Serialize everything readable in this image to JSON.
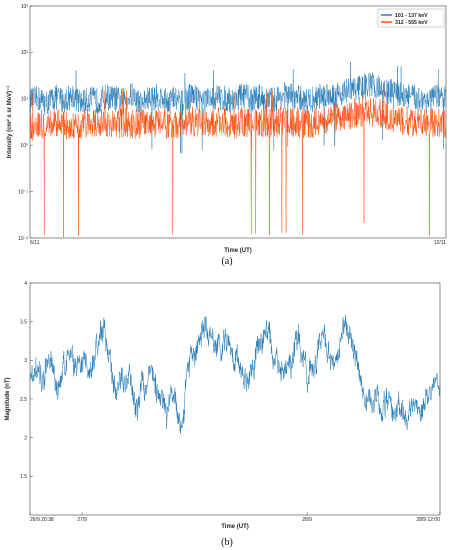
{
  "chart_data": [
    {
      "type": "line",
      "panel_label": "(a)",
      "xlabel": "Time (UT)",
      "ylabel": "Intensity (cm² s sr MeV)⁻¹",
      "yscale": "log",
      "ylim": [
        0.01,
        1000
      ],
      "ytick_labels": [
        "10⁻²",
        "10⁻¹",
        "10⁰",
        "10¹",
        "10²",
        "10³"
      ],
      "ytick_values": [
        0.01,
        0.1,
        1,
        10,
        100,
        1000
      ],
      "xtick_labels": [
        "6/11",
        "12/11"
      ],
      "legend_position": "top-right",
      "series": [
        {
          "name": "101 - 137 keV",
          "color": "#1f77b4",
          "values": [
            9,
            10,
            8,
            11,
            9,
            12,
            8,
            10,
            9,
            11,
            10,
            9,
            12,
            8,
            10,
            11,
            9,
            10,
            8,
            12,
            10,
            9,
            11,
            10,
            9,
            12,
            10,
            11,
            9,
            10,
            12,
            11,
            10,
            9,
            11,
            13,
            12,
            14,
            16,
            18,
            20,
            18,
            15,
            13,
            12,
            11,
            10,
            9,
            11,
            10
          ]
        },
        {
          "name": "312 - 555 keV",
          "color": "#ff4500",
          "values": [
            2.5,
            3,
            2.8,
            3.2,
            2.6,
            3,
            2.7,
            3.1,
            2.9,
            3,
            2.6,
            3.2,
            2.8,
            3,
            2.7,
            3.1,
            2.9,
            3,
            2.8,
            3.2,
            3,
            2.9,
            3.1,
            3,
            2.8,
            3.3,
            3,
            3.2,
            2.9,
            3,
            3.3,
            3.1,
            3,
            2.9,
            3.2,
            3.6,
            3.9,
            4.3,
            4.8,
            5.2,
            5.5,
            5,
            4.3,
            3.8,
            3.4,
            3.1,
            3,
            2.8,
            3,
            2.9
          ]
        }
      ]
    },
    {
      "type": "line",
      "panel_label": "(b)",
      "xlabel": "Time (UT)",
      "ylabel": "Magnitude (nT)",
      "ylim": [
        1,
        4
      ],
      "ytick_labels": [
        "1.5",
        "2",
        "2.5",
        "3",
        "3.5",
        "4"
      ],
      "ytick_values": [
        1.5,
        2,
        2.5,
        3,
        3.5,
        4
      ],
      "xtick_labels": [
        "26/9 20:38",
        "27/9",
        "28/9",
        "28/9 12:00"
      ],
      "xtick_positions": [
        0,
        0.127,
        0.676,
        1
      ],
      "series": [
        {
          "name": "",
          "color": "#1f77b4",
          "values": [
            2.85,
            2.8,
            2.9,
            2.7,
            2.95,
            3.0,
            2.75,
            2.6,
            2.9,
            3.05,
            3.1,
            2.85,
            2.95,
            3.0,
            2.8,
            2.9,
            3.15,
            3.35,
            3.3,
            3.1,
            2.7,
            2.55,
            2.75,
            2.6,
            2.85,
            2.5,
            2.4,
            2.8,
            2.6,
            2.9,
            2.7,
            2.55,
            2.45,
            2.3,
            2.6,
            2.45,
            2.2,
            2.3,
            2.9,
            3.05,
            2.95,
            3.2,
            3.45,
            3.3,
            3.35,
            3.2,
            3.1,
            3.3,
            3.25,
            3.0,
            3.1,
            2.9,
            2.75,
            2.85,
            2.95,
            3.1,
            3.3,
            3.4,
            3.25,
            3.05,
            2.95,
            2.8,
            3.0,
            2.9,
            3.15,
            3.3,
            3.1,
            2.75,
            2.85,
            2.95,
            3.3,
            3.35,
            3.1,
            2.9,
            3.0,
            3.2,
            3.45,
            3.3,
            3.15,
            2.95,
            2.7,
            2.5,
            2.55,
            2.4,
            2.6,
            2.3,
            2.45,
            2.5,
            2.2,
            2.4,
            2.3,
            2.15,
            2.35,
            2.5,
            2.3,
            2.4,
            2.55,
            2.6,
            2.65,
            2.5
          ]
        }
      ]
    }
  ]
}
